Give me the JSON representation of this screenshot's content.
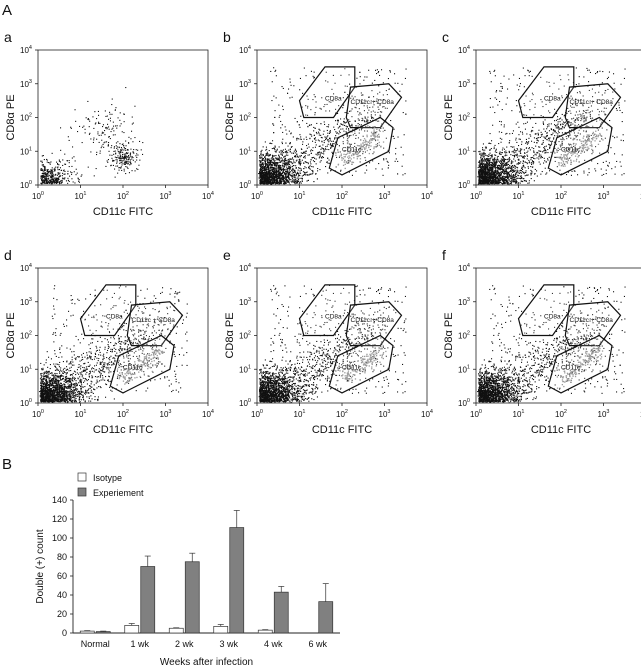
{
  "figure": {
    "panel_a_label": "A",
    "panel_b_label": "B"
  },
  "flow_panels": [
    {
      "letter": "a",
      "xlabel": "CD11c FITC",
      "ylabel": "CD8α PE",
      "gates": []
    },
    {
      "letter": "b",
      "xlabel": "CD11c FITC",
      "ylabel": "CD8α PE",
      "gates": [
        "CD8a",
        "CD11c + CD8a",
        "CD11c"
      ]
    },
    {
      "letter": "c",
      "xlabel": "CD11c FITC",
      "ylabel": "CD8α PE",
      "gates": [
        "CD8a",
        "CD11c + CD8a",
        "CD11c"
      ]
    },
    {
      "letter": "d",
      "xlabel": "CD11c FITC",
      "ylabel": "CD8α PE",
      "gates": [
        "CD8a",
        "CD11c + CD8a",
        "CD11c"
      ]
    },
    {
      "letter": "e",
      "xlabel": "CD11c FITC",
      "ylabel": "CD8α PE",
      "gates": [
        "CD8a",
        "CD11c + CD8a",
        "CD11c"
      ]
    },
    {
      "letter": "f",
      "xlabel": "CD11c FITC",
      "ylabel": "CD8α PE",
      "gates": [
        "CD8a",
        "CD11c + CD8a",
        "CD11c"
      ]
    }
  ],
  "log_axis": {
    "tick_base": "10",
    "exponents": [
      "0",
      "1",
      "2",
      "3",
      "4"
    ]
  },
  "chart_data": {
    "type": "bar",
    "title": "",
    "xlabel": "Weeks after infection",
    "ylabel": "Double (+) count",
    "categories": [
      "Normal",
      "1 wk",
      "2 wk",
      "3 wk",
      "4 wk",
      "6 wk"
    ],
    "ylim": [
      0,
      140
    ],
    "yticks": [
      0,
      20,
      40,
      60,
      80,
      100,
      120,
      140
    ],
    "legend_position": "top-left",
    "series": [
      {
        "name": "Isotype",
        "color": "#ffffff",
        "values": [
          2,
          8,
          5,
          7,
          3,
          0
        ],
        "errors": [
          0.5,
          2,
          0.5,
          2,
          0.5,
          0
        ]
      },
      {
        "name": "Experiement",
        "color": "#808080",
        "values": [
          1.5,
          70,
          75,
          111,
          43,
          33
        ],
        "errors": [
          0.5,
          11,
          9,
          18,
          6,
          19
        ]
      }
    ]
  }
}
